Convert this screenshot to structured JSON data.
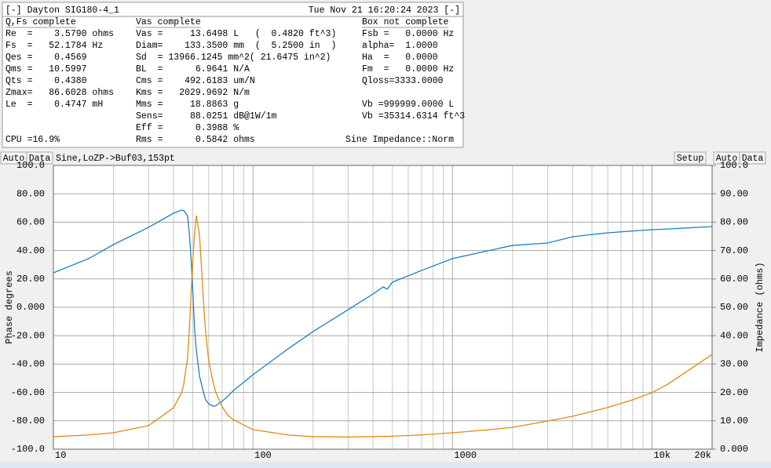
{
  "panel": {
    "title": "[-] Dayton SIG180-4_1",
    "timestamp": "Tue Nov 21 16:20:24 2023 [-]",
    "columns": [
      {
        "heading": "Q,Fs complete",
        "lines": [
          "Re  =    3.5790 ohms",
          "Fs  =   52.1784 Hz",
          "Qes =    0.4569",
          "Qms =   10.5997",
          "Qts =    0.4380",
          "Zmax=   86.6028 ohms",
          "Le  =    0.4747 mH"
        ]
      },
      {
        "heading": "Vas complete",
        "lines": [
          "Vas =     13.6498 L   (  0.4820 ft^3)",
          "Diam=    133.3500 mm  (  5.2500 in  )",
          "Sd  = 13966.1245 mm^2( 21.6475 in^2)",
          "BL  =      6.9641 N/A",
          "Cms =    492.6183 um/N",
          "Kms =   2029.9692 N/m",
          "Mms =     18.8863 g",
          "Sens=     88.0251 dB@1W/1m",
          "Eff =      0.3988 %",
          "Rms =      0.5842 ohms"
        ]
      },
      {
        "heading": "Box not complete",
        "lines": [
          "Fsb =   0.0000 Hz",
          "alpha=  1.0000",
          "Ha  =   0.0000",
          "Fm  =   0.0000 Hz",
          "Qloss=3333.0000"
        ],
        "volume_lines": [
          "Vb =999999.0000 L",
          "Vb =35314.6314 ft^3"
        ]
      }
    ],
    "cpu": "CPU =16.9%",
    "mode": "Sine Impedance::Norm"
  },
  "toolbar": {
    "left_buttons": [
      "Auto",
      "Data"
    ],
    "label": "Sine,LoZP->Buf03,153pt",
    "setup": "Setup",
    "right_buttons": [
      "Auto",
      "Data"
    ]
  },
  "chart_data": {
    "type": "line",
    "log_x": true,
    "grid": true,
    "ylabel": "Phase degrees",
    "y2label": "Impedance (ohms)",
    "x": [
      10,
      15,
      20,
      30,
      40,
      44,
      45,
      47,
      48,
      49,
      50,
      51,
      52,
      54,
      57,
      58,
      60,
      63,
      65,
      70,
      75,
      80,
      100,
      150,
      200,
      300,
      400,
      450,
      470,
      500,
      700,
      1000,
      1500,
      2000,
      3000,
      4000,
      5000,
      6000,
      8000,
      10000,
      12000,
      20000
    ],
    "series": [
      {
        "name": "Phase",
        "color": "#1a7fc0",
        "values": [
          24.3,
          34.3,
          44.2,
          56.4,
          66.3,
          68.5,
          68.2,
          64.6,
          52,
          34,
          10,
          -15.5,
          -30,
          -48.6,
          -62,
          -65.2,
          -68,
          -69.6,
          -69.5,
          -66.3,
          -62.5,
          -58.6,
          -47.5,
          -29.3,
          -17.1,
          -1.7,
          9.4,
          14.4,
          12.7,
          17.7,
          26,
          34.3,
          39.8,
          43.6,
          45.3,
          49.7,
          51.3,
          52.5,
          53.8,
          54.7,
          55.2,
          56.9
        ]
      },
      {
        "name": "Impedance",
        "color": "#e08a10",
        "axis": "y2",
        "values": [
          4.4,
          5,
          5.8,
          8.3,
          14.6,
          20,
          22.9,
          32,
          42.3,
          55,
          67.1,
          76,
          82.3,
          75.4,
          47.8,
          41,
          31.2,
          24,
          20.2,
          15,
          11.9,
          10.3,
          6.9,
          5,
          4.4,
          4.3,
          4.4,
          4.5,
          4.5,
          4.6,
          5,
          5.8,
          6.8,
          7.7,
          9.9,
          11.6,
          13.3,
          14.7,
          17.4,
          19.9,
          22.9,
          33.4
        ]
      }
    ],
    "xlim": [
      10,
      20000
    ],
    "xticks": [
      10,
      100,
      1000,
      {
        "value": 10000,
        "label": "10k"
      },
      {
        "value": 20000,
        "label": "20k"
      }
    ],
    "xminor": [
      20,
      30,
      40,
      50,
      60,
      70,
      80,
      90,
      200,
      300,
      400,
      500,
      600,
      700,
      800,
      900,
      2000,
      3000,
      4000,
      5000,
      6000,
      7000,
      8000,
      9000
    ],
    "ylim": [
      -100,
      100
    ],
    "yticks": [
      {
        "value": -100,
        "label": "-100.0"
      },
      {
        "value": -80,
        "label": "-80.00"
      },
      {
        "value": -60,
        "label": "-60.00"
      },
      {
        "value": -40,
        "label": "-40.00"
      },
      {
        "value": -20,
        "label": "-20.00"
      },
      {
        "value": 0,
        "label": "0.000"
      },
      {
        "value": 20,
        "label": "20.00"
      },
      {
        "value": 40,
        "label": "40.00"
      },
      {
        "value": 60,
        "label": "60.00"
      },
      {
        "value": 80,
        "label": "80.00"
      },
      {
        "value": 100,
        "label": "100.0"
      }
    ],
    "y2lim": [
      0,
      100
    ],
    "y2ticks": [
      {
        "value": 0,
        "label": "0.000"
      },
      {
        "value": 10,
        "label": "10.00"
      },
      {
        "value": 20,
        "label": "20.00"
      },
      {
        "value": 30,
        "label": "30.00"
      },
      {
        "value": 40,
        "label": "40.00"
      },
      {
        "value": 50,
        "label": "50.00"
      },
      {
        "value": 60,
        "label": "60.00"
      },
      {
        "value": 70,
        "label": "70.00"
      },
      {
        "value": 80,
        "label": "80.00"
      },
      {
        "value": 90,
        "label": "90.00"
      },
      {
        "value": 100,
        "label": "100.0"
      }
    ]
  }
}
